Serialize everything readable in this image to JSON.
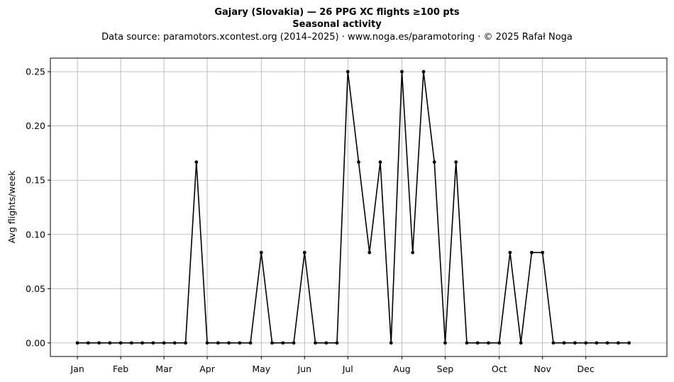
{
  "chart_data": {
    "type": "line",
    "title": "Gajary (Slovakia)  —  26 PPG XC flights ≥100 pts",
    "subtitle": "Seasonal activity",
    "source": "Data source: paramotors.xcontest.org (2014–2025)  ·  www.noga.es/paramotoring  ·  © 2025 Rafał Noga",
    "xlabel": "",
    "ylabel": "Avg flights/week",
    "ylim": [
      -0.0125,
      0.2625
    ],
    "xlim": [
      -2.5,
      54.5
    ],
    "yticks": [
      {
        "value": 0.0,
        "label": "0.00"
      },
      {
        "value": 0.05,
        "label": "0.05"
      },
      {
        "value": 0.1,
        "label": "0.10"
      },
      {
        "value": 0.15,
        "label": "0.15"
      },
      {
        "value": 0.2,
        "label": "0.20"
      },
      {
        "value": 0.25,
        "label": "0.25"
      }
    ],
    "xticks": [
      {
        "value": 0,
        "label": "Jan"
      },
      {
        "value": 4,
        "label": "Feb"
      },
      {
        "value": 8,
        "label": "Mar"
      },
      {
        "value": 12,
        "label": "Apr"
      },
      {
        "value": 17,
        "label": "May"
      },
      {
        "value": 21,
        "label": "Jun"
      },
      {
        "value": 25,
        "label": "Jul"
      },
      {
        "value": 30,
        "label": "Aug"
      },
      {
        "value": 34,
        "label": "Sep"
      },
      {
        "value": 39,
        "label": "Oct"
      },
      {
        "value": 43,
        "label": "Nov"
      },
      {
        "value": 47,
        "label": "Dec"
      }
    ],
    "grid": true,
    "color": "#000000",
    "x": [
      0,
      1,
      2,
      3,
      4,
      5,
      6,
      7,
      8,
      9,
      10,
      11,
      12,
      13,
      14,
      15,
      16,
      17,
      18,
      19,
      20,
      21,
      22,
      23,
      24,
      25,
      26,
      27,
      28,
      29,
      30,
      31,
      32,
      33,
      34,
      35,
      36,
      37,
      38,
      39,
      40,
      41,
      42,
      43,
      44,
      45,
      46,
      47,
      48,
      49,
      50,
      51
    ],
    "values": [
      0,
      0,
      0,
      0,
      0,
      0,
      0,
      0,
      0,
      0,
      0,
      0.1667,
      0,
      0,
      0,
      0,
      0,
      0.0833,
      0,
      0,
      0,
      0.0833,
      0,
      0,
      0,
      0.25,
      0.1667,
      0.0833,
      0.1667,
      0,
      0.25,
      0.0833,
      0.25,
      0.1667,
      0,
      0.1667,
      0,
      0,
      0,
      0,
      0.0833,
      0,
      0.0833,
      0.0833,
      0,
      0,
      0,
      0,
      0,
      0,
      0,
      0
    ]
  }
}
